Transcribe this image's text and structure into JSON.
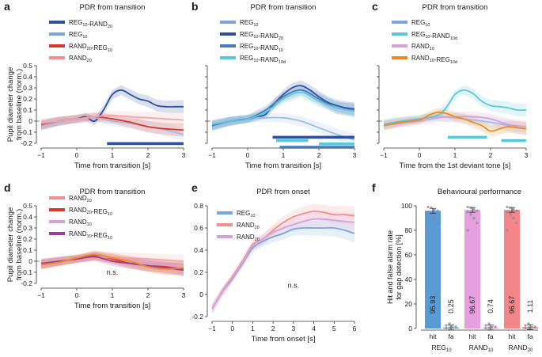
{
  "chart_data": [
    {
      "id": "a",
      "panel_letter": "a",
      "type": "line",
      "title": "PDR from transition",
      "xlabel": "Time from transition [s]",
      "ylabel_lines": [
        "Pupil diameter change",
        "from baseline (norm.)"
      ],
      "xlim": [
        -1,
        3
      ],
      "ylim": [
        -0.2,
        0.5
      ],
      "xticks": [
        "-1",
        "0",
        "1",
        "2",
        "3"
      ],
      "yticks": [
        "-0.2",
        "-0.1",
        "0",
        "0.1",
        "0.2",
        "0.3",
        "0.4",
        "0.5"
      ],
      "legend": [
        {
          "label": "REG",
          "sub": "10",
          "mid": "-RAND",
          "sub2": "20",
          "color": "#2f4fa0"
        },
        {
          "label": "REG",
          "sub": "10",
          "color": "#7aa6dc"
        },
        {
          "label": "RAND",
          "sub": "20",
          "mid": "-REG",
          "sub2": "10",
          "color": "#e0342c"
        },
        {
          "label": "RAND",
          "sub": "20",
          "color": "#f28e8e"
        }
      ],
      "series": [
        {
          "name": "REG10-RAND20",
          "color": "#2f4fa0",
          "x": [
            -1,
            -0.5,
            0,
            0.25,
            0.5,
            0.75,
            1,
            1.25,
            1.5,
            1.75,
            2,
            2.25,
            2.5,
            2.75,
            3
          ],
          "y": [
            -0.04,
            0,
            0.02,
            0.04,
            0,
            0.1,
            0.24,
            0.28,
            0.24,
            0.2,
            0.18,
            0.14,
            0.13,
            0.13,
            0.13
          ]
        },
        {
          "name": "REG10",
          "color": "#9dbde6",
          "x": [
            -1,
            -0.5,
            0,
            0.5,
            1,
            1.5,
            2,
            2.5,
            3
          ],
          "y": [
            -0.04,
            -0.01,
            0.02,
            0.03,
            0,
            -0.02,
            -0.05,
            -0.08,
            -0.12
          ]
        },
        {
          "name": "RAND20-REG10",
          "color": "#e0342c",
          "x": [
            -1,
            -0.5,
            0,
            0.5,
            1,
            1.5,
            2,
            2.5,
            3
          ],
          "y": [
            -0.03,
            0,
            0.02,
            0.04,
            0.02,
            -0.01,
            -0.05,
            -0.07,
            -0.08
          ]
        },
        {
          "name": "RAND20",
          "color": "#f4a4a4",
          "x": [
            -1,
            -0.5,
            0,
            0.5,
            1,
            1.5,
            2,
            2.5,
            3
          ],
          "y": [
            -0.02,
            0,
            0.02,
            0.04,
            0.05,
            0.04,
            0.03,
            0.02,
            0.01
          ]
        }
      ],
      "bands": [
        {
          "color": "#2f4fa0",
          "x0": 0.85,
          "x1": 3
        }
      ]
    },
    {
      "id": "b",
      "panel_letter": "b",
      "type": "line",
      "title": "PDR from transition",
      "xlabel": "Time from transition [s]",
      "xlim": [
        -1,
        3
      ],
      "ylim": [
        -0.2,
        0.5
      ],
      "xticks": [
        "-1",
        "0",
        "1",
        "2",
        "3"
      ],
      "legend": [
        {
          "label": "REG",
          "sub": "10",
          "color": "#7aa6dc"
        },
        {
          "label": "REG",
          "sub": "10",
          "mid": "-RAND",
          "sub2": "20",
          "color": "#2f4fa0"
        },
        {
          "label": "REG",
          "sub": "10",
          "mid": "-RAND",
          "sub2": "10",
          "color": "#4a78bf"
        },
        {
          "label": "REG",
          "sub": "10",
          "mid": "-RAND",
          "sub2": "10d",
          "color": "#5bc8d8"
        }
      ],
      "series": [
        {
          "name": "REG10",
          "color": "#9dbde6",
          "x": [
            -1,
            -0.5,
            0,
            0.5,
            1,
            1.5,
            2,
            2.5,
            3
          ],
          "y": [
            -0.05,
            -0.01,
            0.02,
            0.03,
            0.03,
            0,
            -0.06,
            -0.12,
            -0.17
          ]
        },
        {
          "name": "REG10-RAND20",
          "color": "#2f4fa0",
          "x": [
            -1,
            -0.5,
            0,
            0.25,
            0.5,
            0.75,
            1,
            1.25,
            1.5,
            1.75,
            2,
            2.25,
            2.5,
            2.75,
            3
          ],
          "y": [
            -0.04,
            0,
            0.02,
            0.04,
            0.06,
            0.16,
            0.24,
            0.3,
            0.32,
            0.28,
            0.22,
            0.17,
            0.14,
            0.12,
            0.11
          ]
        },
        {
          "name": "REG10-RAND10",
          "color": "#4a78bf",
          "x": [
            -1,
            -0.5,
            0,
            0.5,
            1,
            1.5,
            2,
            2.5,
            3
          ],
          "y": [
            -0.04,
            0,
            0.02,
            0.1,
            0.22,
            0.28,
            0.2,
            0.12,
            0.1
          ]
        },
        {
          "name": "REG10-RAND10d",
          "color": "#5bc8d8",
          "x": [
            -1,
            -0.5,
            0,
            0.5,
            1,
            1.5,
            2,
            2.5,
            3
          ],
          "y": [
            -0.03,
            0,
            0.02,
            0.08,
            0.2,
            0.26,
            0.18,
            0.12,
            0.09
          ]
        }
      ],
      "bands": [
        {
          "color": "#2f4fa0",
          "x0": 0.7,
          "x1": 3
        },
        {
          "color": "#5bc8d8",
          "x0": 0.8,
          "x1": 1.7
        },
        {
          "color": "#5bc8d8",
          "x0": 2.0,
          "x1": 3
        },
        {
          "color": "#4a78bf",
          "x0": 0.9,
          "x1": 3
        }
      ]
    },
    {
      "id": "c",
      "panel_letter": "c",
      "type": "line",
      "title": "PDR from transition",
      "xlabel": "Time from the 1st deviant tone [s]",
      "xlim": [
        -1,
        3
      ],
      "ylim": [
        -0.2,
        0.5
      ],
      "xticks": [
        "-1",
        "0",
        "1",
        "2",
        "3"
      ],
      "legend": [
        {
          "label": "REG",
          "sub": "10",
          "color": "#7aa6dc"
        },
        {
          "label": "REG",
          "sub": "10",
          "mid": "-RAND",
          "sub2": "10d",
          "color": "#5bc8d8"
        },
        {
          "label": "RAND",
          "sub": "10",
          "color": "#d8a0d8"
        },
        {
          "label": "RAND",
          "sub": "10",
          "mid": "-REG",
          "sub2": "10d",
          "color": "#f08a1e"
        }
      ],
      "series": [
        {
          "name": "REG10",
          "color": "#9dbde6",
          "x": [
            -1,
            -0.5,
            0,
            0.5,
            1,
            1.5,
            2,
            2.5,
            3
          ],
          "y": [
            -0.03,
            0,
            0.02,
            0.04,
            0.03,
            0.01,
            -0.01,
            -0.04,
            -0.07
          ]
        },
        {
          "name": "REG10-RAND10d",
          "color": "#5bc8d8",
          "x": [
            -1,
            -0.5,
            0,
            0.5,
            0.75,
            1,
            1.25,
            1.5,
            1.75,
            2,
            2.25,
            2.5,
            2.75,
            3
          ],
          "y": [
            -0.03,
            0,
            0.02,
            0.05,
            0.12,
            0.24,
            0.28,
            0.25,
            0.18,
            0.14,
            0.13,
            0.12,
            0.1,
            0.1
          ]
        },
        {
          "name": "RAND10",
          "color": "#d8a0d8",
          "x": [
            -1,
            -0.5,
            0,
            0.5,
            1,
            1.5,
            2,
            2.5,
            3
          ],
          "y": [
            -0.04,
            -0.02,
            0,
            0.03,
            0.04,
            0.04,
            0.02,
            -0.03,
            -0.05
          ]
        },
        {
          "name": "RAND10-REG10d",
          "color": "#f08a1e",
          "x": [
            -1,
            -0.5,
            0,
            0.25,
            0.5,
            0.75,
            1,
            1.25,
            1.5,
            1.75,
            2,
            2.25,
            2.5,
            2.75,
            3
          ],
          "y": [
            -0.04,
            -0.01,
            0.01,
            0.05,
            0.08,
            0.07,
            0.04,
            0.02,
            -0.01,
            -0.04,
            -0.09,
            -0.07,
            -0.05,
            -0.06,
            -0.07
          ]
        }
      ],
      "bands": [
        {
          "color": "#5bc8d8",
          "x0": 0.8,
          "x1": 1.9
        },
        {
          "color": "#5bc8d8",
          "x0": 2.3,
          "x1": 3
        }
      ]
    },
    {
      "id": "d",
      "panel_letter": "d",
      "type": "line",
      "title": "PDR from transition",
      "xlabel": "Time from transition [s]",
      "ylabel_lines": [
        "Pupil diameter change",
        "from baseline (norm.)"
      ],
      "xlim": [
        -1,
        3
      ],
      "ylim": [
        -0.2,
        0.5
      ],
      "xticks": [
        "-1",
        "0",
        "1",
        "2",
        "3"
      ],
      "yticks": [
        "-0.2",
        "-0.1",
        "0",
        "0.1",
        "0.2",
        "0.3",
        "0.4",
        "0.5"
      ],
      "annotation": "n.s.",
      "annotation_pos": {
        "x": 1.0,
        "y": -0.12
      },
      "legend": [
        {
          "label": "RAND",
          "sub": "20",
          "color": "#f28e8e"
        },
        {
          "label": "RAND",
          "sub": "20",
          "mid": "-REG",
          "sub2": "10",
          "color": "#e0342c"
        },
        {
          "label": "RAND",
          "sub": "10",
          "color": "#d8a0d8"
        },
        {
          "label": "RAND",
          "sub": "10",
          "mid": "-REG",
          "sub2": "10",
          "color": "#9a3c9a"
        }
      ],
      "series": [
        {
          "name": "RAND20",
          "color": "#f4a4a4",
          "x": [
            -1,
            -0.5,
            0,
            0.5,
            1,
            1.5,
            2,
            2.5,
            3
          ],
          "y": [
            -0.02,
            0,
            0.02,
            0.05,
            0.04,
            0.03,
            0.02,
            0.01,
            0
          ]
        },
        {
          "name": "RAND20-REG10",
          "color": "#e0342c",
          "x": [
            -1,
            -0.5,
            0,
            0.5,
            1,
            1.5,
            2,
            2.5,
            3
          ],
          "y": [
            -0.03,
            0,
            0.02,
            0.05,
            0.02,
            -0.02,
            -0.04,
            -0.05,
            -0.07
          ]
        },
        {
          "name": "RAND10",
          "color": "#d8a0d8",
          "x": [
            -1,
            -0.5,
            0,
            0.5,
            1,
            1.5,
            2,
            2.5,
            3
          ],
          "y": [
            -0.03,
            0,
            0.02,
            0.04,
            0.03,
            0,
            -0.02,
            -0.03,
            -0.06
          ]
        },
        {
          "name": "RAND10-REG10",
          "color": "#9a3c9a",
          "x": [
            -1,
            -0.5,
            0,
            0.5,
            1,
            1.5,
            2,
            2.5,
            3
          ],
          "y": [
            -0.02,
            0,
            0.02,
            0.04,
            0,
            -0.02,
            -0.04,
            -0.06,
            -0.08
          ]
        },
        {
          "name": "orange",
          "color": "#f08a1e",
          "x": [
            -1,
            -0.5,
            0,
            0.5,
            1,
            1.5,
            2,
            2.5,
            3
          ],
          "y": [
            -0.03,
            -0.01,
            0.03,
            0.06,
            0.03,
            0,
            -0.05,
            -0.07,
            -0.06
          ]
        }
      ],
      "bands": []
    },
    {
      "id": "e",
      "panel_letter": "e",
      "type": "line",
      "title": "PDR from onset",
      "xlabel": "Time from onset [s]",
      "xlim": [
        -1,
        6
      ],
      "ylim": [
        -0.2,
        0.8
      ],
      "xticks": [
        "-1",
        "0",
        "1",
        "2",
        "3",
        "4",
        "5",
        "6"
      ],
      "yticks": [
        "-0.2",
        "0",
        "0.2",
        "0.4",
        "0.6",
        "0.8"
      ],
      "annotation": "n.s.",
      "annotation_pos": {
        "x": 3.0,
        "y": 0.06
      },
      "legend": [
        {
          "label": "REG",
          "sub": "10",
          "color": "#7aa6dc"
        },
        {
          "label": "RAND",
          "sub": "20",
          "color": "#f28e8e"
        },
        {
          "label": "RAND",
          "sub": "10",
          "color": "#d8a0d8"
        }
      ],
      "series": [
        {
          "name": "REG10",
          "color": "#7aa6dc",
          "x": [
            -1,
            -0.5,
            0,
            0.5,
            1,
            1.5,
            2,
            2.5,
            3,
            3.5,
            4,
            4.5,
            5,
            5.5,
            6
          ],
          "y": [
            -0.13,
            0.02,
            0.14,
            0.28,
            0.42,
            0.48,
            0.52,
            0.55,
            0.59,
            0.6,
            0.6,
            0.6,
            0.6,
            0.58,
            0.55
          ]
        },
        {
          "name": "RAND20",
          "color": "#f28e8e",
          "x": [
            -1,
            -0.5,
            0,
            0.5,
            1,
            1.5,
            2,
            2.5,
            3,
            3.5,
            4,
            4.5,
            5,
            5.5,
            6
          ],
          "y": [
            -0.13,
            0.03,
            0.16,
            0.3,
            0.45,
            0.5,
            0.58,
            0.65,
            0.7,
            0.73,
            0.75,
            0.74,
            0.72,
            0.72,
            0.71
          ]
        },
        {
          "name": "RAND10",
          "color": "#d8a0d8",
          "x": [
            -1,
            -0.5,
            0,
            0.5,
            1,
            1.5,
            2,
            2.5,
            3,
            3.5,
            4,
            4.5,
            5,
            5.5,
            6
          ],
          "y": [
            -0.13,
            0.02,
            0.15,
            0.29,
            0.44,
            0.5,
            0.56,
            0.6,
            0.63,
            0.66,
            0.68,
            0.68,
            0.67,
            0.66,
            0.65
          ]
        }
      ],
      "bands": []
    },
    {
      "id": "f",
      "panel_letter": "f",
      "type": "bar",
      "title": "Behavioural performance",
      "ylabel_lines": [
        "Hit and false alarm rate",
        "for gap detection [%]"
      ],
      "ylim": [
        0,
        100
      ],
      "yticks": [
        "0",
        "20",
        "40",
        "60",
        "80",
        "100"
      ],
      "groups": [
        {
          "name": "REG",
          "sub": "10",
          "color": "#5b9bd5",
          "bars": [
            {
              "cat": "hit",
              "value": 95.93,
              "label": "95.93"
            },
            {
              "cat": "fa",
              "value": 0.25,
              "label": "0.25"
            }
          ]
        },
        {
          "name": "RAND",
          "sub": "10",
          "color": "#e6a0e0",
          "bars": [
            {
              "cat": "hit",
              "value": 96.67,
              "label": "96.67"
            },
            {
              "cat": "fa",
              "value": 0.74,
              "label": "0.74"
            }
          ]
        },
        {
          "name": "RAND",
          "sub": "20",
          "color": "#f4868a",
          "bars": [
            {
              "cat": "hit",
              "value": 96.67,
              "label": "96.67"
            },
            {
              "cat": "fa",
              "value": 1.11,
              "label": "1.11"
            }
          ]
        }
      ]
    }
  ]
}
